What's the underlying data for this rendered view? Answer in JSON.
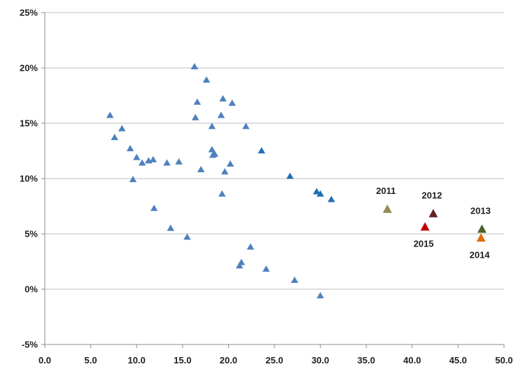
{
  "chart_data": {
    "type": "scatter",
    "title": "",
    "xlabel": "",
    "ylabel": "",
    "xlim": [
      0,
      50
    ],
    "ylim": [
      -5,
      25
    ],
    "x_ticks": [
      0,
      5,
      10,
      15,
      20,
      25,
      30,
      35,
      40,
      45,
      50
    ],
    "x_tick_labels": [
      "0.0",
      "5.0",
      "10.0",
      "15.0",
      "20.0",
      "25.0",
      "30.0",
      "35.0",
      "40.0",
      "45.0",
      "50.0"
    ],
    "y_ticks": [
      -5,
      0,
      5,
      10,
      15,
      20,
      25
    ],
    "y_tick_labels": [
      "-5%",
      "0%",
      "5%",
      "10%",
      "15%",
      "20%",
      "25%"
    ],
    "grid": "horizontal",
    "legend": "none",
    "marker": "triangle",
    "colors": {
      "base": "#4f81bd",
      "darker": "#1f6db5",
      "axis": "#8c8c8c",
      "grid": "#bfbfbf"
    },
    "series": [
      {
        "name": "other",
        "color": "#4f81bd",
        "x": [
          7.1,
          7.6,
          8.4,
          9.3,
          9.6,
          10.0,
          10.6,
          11.3,
          11.8,
          11.9,
          13.3,
          13.7,
          14.6,
          15.5,
          16.3,
          16.4,
          16.6,
          17.0,
          17.6,
          18.2,
          18.2,
          18.3,
          18.5,
          19.2,
          19.3,
          19.4,
          19.6,
          20.2,
          20.4,
          21.2,
          21.4,
          21.9,
          22.4,
          24.1,
          27.2,
          30.0
        ],
        "y": [
          15.7,
          13.7,
          14.5,
          12.7,
          9.9,
          11.9,
          11.4,
          11.6,
          11.7,
          7.3,
          11.4,
          5.5,
          11.5,
          4.7,
          20.1,
          15.5,
          16.9,
          10.8,
          18.9,
          14.7,
          12.6,
          12.1,
          12.2,
          15.7,
          8.6,
          17.2,
          10.6,
          11.3,
          16.8,
          2.1,
          2.4,
          14.7,
          3.8,
          1.8,
          0.8,
          -0.6
        ]
      },
      {
        "name": "other-dark",
        "color": "#1f6db5",
        "x": [
          23.6,
          26.7,
          29.6,
          30.0,
          31.2
        ],
        "y": [
          12.5,
          10.2,
          8.8,
          8.6,
          8.1
        ]
      },
      {
        "name": "highlighted-years",
        "points": [
          {
            "label": "2011",
            "x": 37.3,
            "y": 7.2,
            "color": "#948a54",
            "label_pos": "above"
          },
          {
            "label": "2012",
            "x": 42.3,
            "y": 6.8,
            "color": "#632523",
            "label_pos": "above"
          },
          {
            "label": "2013",
            "x": 47.6,
            "y": 5.4,
            "color": "#4f6228",
            "label_pos": "above"
          },
          {
            "label": "2014",
            "x": 47.5,
            "y": 4.6,
            "color": "#e36c09",
            "label_pos": "below"
          },
          {
            "label": "2015",
            "x": 41.4,
            "y": 5.6,
            "color": "#c00000",
            "label_pos": "below"
          }
        ]
      }
    ]
  }
}
